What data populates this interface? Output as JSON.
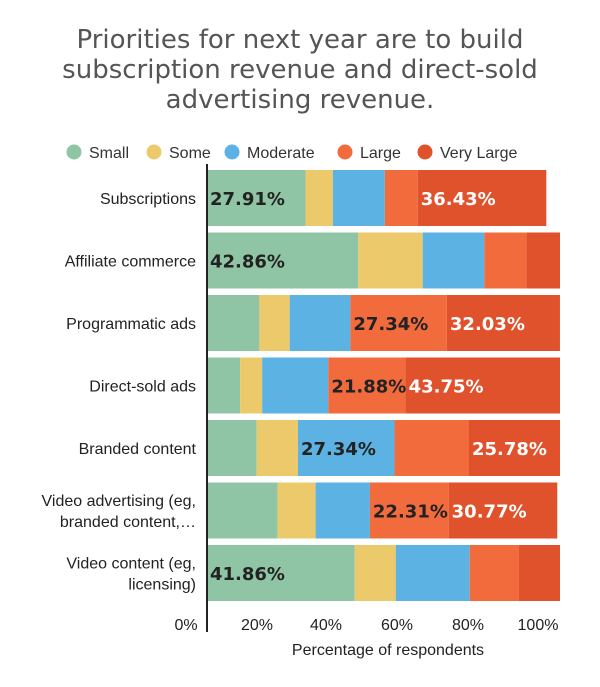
{
  "chart_data": {
    "type": "bar",
    "orientation": "horizontal",
    "stacked": "percent",
    "title_lines": [
      "Priorities for next year are to build",
      "subscription revenue and direct-sold",
      "advertising revenue."
    ],
    "xlabel": "Percentage of respondents",
    "ylabel": "",
    "xlim": [
      0,
      100
    ],
    "x_ticks": [
      "0%",
      "20%",
      "40%",
      "60%",
      "80%",
      "100%"
    ],
    "legend_position": "top",
    "categories": [
      {
        "lines": [
          "Subscriptions"
        ]
      },
      {
        "lines": [
          "Affiliate commerce"
        ]
      },
      {
        "lines": [
          "Programmatic ads"
        ]
      },
      {
        "lines": [
          "Direct-sold ads"
        ]
      },
      {
        "lines": [
          "Branded content"
        ]
      },
      {
        "lines": [
          "Video advertising (eg,",
          "branded content,…"
        ]
      },
      {
        "lines": [
          "Video content (eg,",
          "licensing)"
        ]
      }
    ],
    "series": [
      {
        "name": "Small",
        "color": "#8fc5a4",
        "label_color": "#222222",
        "values": [
          27.91,
          42.86,
          14.84,
          9.38,
          14.06,
          20.0,
          41.86
        ]
      },
      {
        "name": "Some",
        "color": "#ecc96a",
        "label_color": "#222222",
        "values": [
          7.75,
          18.25,
          8.59,
          6.25,
          11.72,
          10.77,
          11.63
        ]
      },
      {
        "name": "Moderate",
        "color": "#5cb2e2",
        "label_color": "#222222",
        "values": [
          14.73,
          17.46,
          17.19,
          18.74,
          27.34,
          15.38,
          20.93
        ]
      },
      {
        "name": "Large",
        "color": "#f26b3d",
        "label_color": "#222222",
        "values": [
          9.3,
          11.9,
          27.34,
          21.88,
          21.1,
          22.31,
          13.95
        ]
      },
      {
        "name": "Very Large",
        "color": "#e0522c",
        "label_color": "#ffffff",
        "values": [
          36.43,
          9.53,
          32.03,
          43.75,
          25.78,
          30.77,
          11.63
        ]
      }
    ],
    "data_labels": [
      {
        "row": 0,
        "series": 0,
        "text": "27.91%"
      },
      {
        "row": 0,
        "series": 4,
        "text": "36.43%"
      },
      {
        "row": 1,
        "series": 0,
        "text": "42.86%"
      },
      {
        "row": 2,
        "series": 3,
        "text": "27.34%"
      },
      {
        "row": 2,
        "series": 4,
        "text": "32.03%"
      },
      {
        "row": 3,
        "series": 3,
        "text": "21.88%"
      },
      {
        "row": 3,
        "series": 4,
        "text": "43.75%"
      },
      {
        "row": 4,
        "series": 2,
        "text": "27.34%"
      },
      {
        "row": 4,
        "series": 4,
        "text": "25.78%"
      },
      {
        "row": 5,
        "series": 3,
        "text": "22.31%"
      },
      {
        "row": 5,
        "series": 4,
        "text": "30.77%"
      },
      {
        "row": 6,
        "series": 0,
        "text": "41.86%"
      }
    ]
  }
}
